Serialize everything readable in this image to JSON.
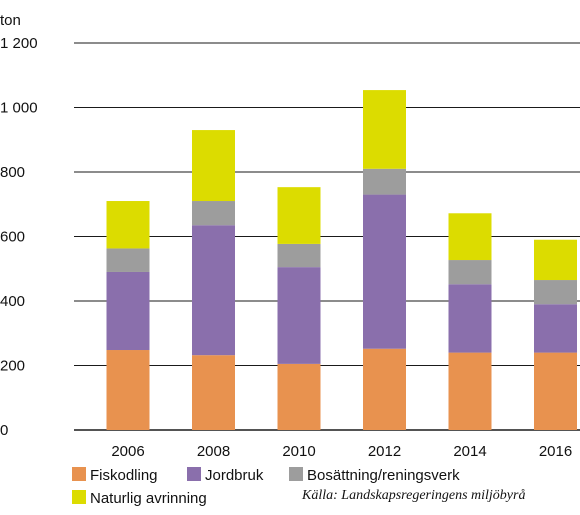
{
  "chart_data": {
    "type": "bar",
    "stacked": true,
    "unit_label": "ton",
    "categories": [
      "2006",
      "2008",
      "2010",
      "2012",
      "2014",
      "2016"
    ],
    "series": [
      {
        "name": "Fiskodling",
        "color": "#e8924f",
        "values": [
          248,
          232,
          205,
          252,
          240,
          240
        ]
      },
      {
        "name": "Jordbruk",
        "color": "#8a6fac",
        "values": [
          242,
          403,
          300,
          478,
          212,
          150
        ]
      },
      {
        "name": "Bosättning/reningsverk",
        "color": "#9d9d9d",
        "values": [
          73,
          75,
          72,
          80,
          75,
          75
        ]
      },
      {
        "name": "Naturlig avrinning",
        "color": "#dcdc00",
        "values": [
          147,
          220,
          176,
          244,
          145,
          125
        ]
      }
    ],
    "ylim": [
      0,
      1200
    ],
    "yticks": [
      0,
      200,
      400,
      600,
      800,
      1000,
      1200
    ],
    "ytick_labels": [
      "0",
      "200",
      "400",
      "600",
      "800",
      "1 000",
      "1 200"
    ],
    "grid": true,
    "legend_position": "bottom",
    "source_note": "Källa: Landskapsregeringens miljöbyrå"
  }
}
